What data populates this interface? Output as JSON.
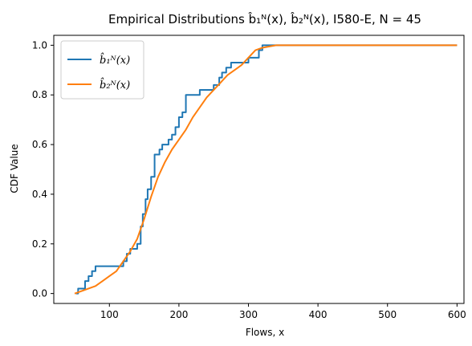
{
  "chart_data": {
    "type": "line",
    "title": "Empirical Distributions b̂₁ᴺ(x), b̂₂ᴺ(x), I580-E, N = 45",
    "xlabel": "Flows, x",
    "ylabel": "CDF Value",
    "xlim": [
      20,
      610
    ],
    "ylim": [
      -0.04,
      1.04
    ],
    "xticks": [
      100,
      200,
      300,
      400,
      500,
      600
    ],
    "yticks": [
      0.0,
      0.2,
      0.4,
      0.6,
      0.8,
      1.0
    ],
    "xtick_labels": [
      "100",
      "200",
      "300",
      "400",
      "500",
      "600"
    ],
    "ytick_labels": [
      "0.0",
      "0.2",
      "0.4",
      "0.6",
      "0.8",
      "1.0"
    ],
    "grid": false,
    "legend_position": "top-left",
    "series": [
      {
        "name": "b̂₁ᴺ(x)",
        "color": "#1f77b4",
        "draw": "step",
        "x": [
          52,
          55,
          60,
          65,
          70,
          75,
          80,
          90,
          100,
          110,
          120,
          125,
          130,
          135,
          140,
          145,
          148,
          152,
          155,
          160,
          165,
          168,
          172,
          176,
          180,
          185,
          190,
          195,
          200,
          205,
          210,
          218,
          230,
          240,
          250,
          258,
          262,
          268,
          275,
          290,
          300,
          310,
          315,
          320,
          370,
          600
        ],
        "y": [
          0.0,
          0.02,
          0.02,
          0.05,
          0.07,
          0.09,
          0.11,
          0.11,
          0.11,
          0.11,
          0.13,
          0.16,
          0.18,
          0.18,
          0.2,
          0.27,
          0.32,
          0.38,
          0.42,
          0.47,
          0.56,
          0.56,
          0.58,
          0.6,
          0.6,
          0.62,
          0.64,
          0.67,
          0.71,
          0.73,
          0.8,
          0.8,
          0.82,
          0.82,
          0.84,
          0.87,
          0.89,
          0.91,
          0.93,
          0.93,
          0.95,
          0.95,
          0.98,
          1.0,
          1.0,
          1.0
        ]
      },
      {
        "name": "b̂₂ᴺ(x)",
        "color": "#ff7f0e",
        "draw": "line",
        "x": [
          50,
          60,
          70,
          80,
          90,
          100,
          110,
          120,
          130,
          140,
          150,
          160,
          170,
          180,
          190,
          200,
          210,
          220,
          230,
          240,
          250,
          260,
          270,
          280,
          290,
          300,
          310,
          320,
          330,
          340,
          350,
          360,
          370,
          380,
          400,
          500,
          600
        ],
        "y": [
          0.0,
          0.01,
          0.02,
          0.03,
          0.05,
          0.07,
          0.09,
          0.13,
          0.17,
          0.22,
          0.3,
          0.39,
          0.47,
          0.53,
          0.58,
          0.62,
          0.66,
          0.71,
          0.75,
          0.79,
          0.82,
          0.85,
          0.88,
          0.9,
          0.92,
          0.95,
          0.98,
          0.99,
          0.995,
          1.0,
          1.0,
          1.0,
          1.0,
          1.0,
          1.0,
          1.0,
          1.0
        ]
      }
    ]
  }
}
